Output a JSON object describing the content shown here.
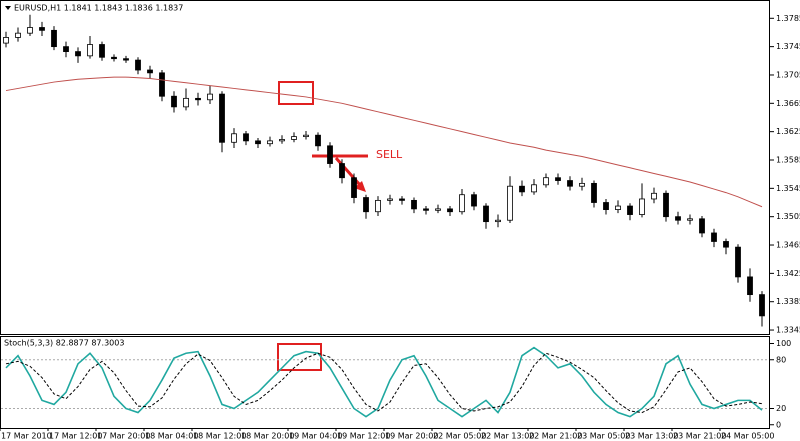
{
  "chart_data": [
    {
      "type": "candlestick",
      "title": "EURUSD,H1  1.1841 1.1843 1.1836 1.1837",
      "annotation": "SELL",
      "categories": [
        "17 Mar 2010",
        null,
        null,
        null,
        "17 Mar 12:00",
        null,
        null,
        null,
        "17 Mar 20:00",
        null,
        null,
        null,
        "18 Mar 04:00",
        null,
        null,
        null,
        "18 Mar 12:00",
        null,
        null,
        null,
        "18 Mar 20:00",
        null,
        null,
        null,
        "19 Mar 04:00",
        null,
        null,
        null,
        "19 Mar 12:00",
        null,
        null,
        null,
        "19 Mar 20:00",
        null,
        null,
        null,
        "22 Mar 05:00",
        null,
        null,
        null,
        "22 Mar 13:00",
        null,
        null,
        null,
        "22 Mar 21:00",
        null,
        null,
        null,
        "23 Mar 05:00",
        null,
        null,
        null,
        "23 Mar 13:00",
        null,
        null,
        null,
        "23 Mar 21:00",
        null,
        null,
        null,
        "24 Mar 05:00",
        null,
        null,
        null
      ],
      "open": [
        1.375,
        1.3758,
        1.3764,
        1.3772,
        1.3768,
        1.3745,
        1.3738,
        1.3732,
        1.3748,
        1.373,
        1.3728,
        1.3726,
        1.3712,
        1.3708,
        1.3675,
        1.366,
        1.3672,
        1.367,
        1.3678,
        1.361,
        1.3622,
        1.3612,
        1.3608,
        1.3612,
        1.3614,
        1.3618,
        1.362,
        1.3605,
        1.358,
        1.356,
        1.3532,
        1.3512,
        1.3528,
        1.353,
        1.3528,
        1.3516,
        1.3514,
        1.3516,
        1.3512,
        1.3536,
        1.352,
        1.3498,
        1.35,
        1.3548,
        1.354,
        1.355,
        1.356,
        1.3556,
        1.3548,
        1.3552,
        1.3525,
        1.3515,
        1.352,
        1.3508,
        1.353,
        1.3538,
        1.3505,
        1.35,
        1.3502,
        1.3482,
        1.347,
        1.3462,
        1.342,
        1.3395
      ],
      "high": [
        1.3766,
        1.3772,
        1.379,
        1.378,
        1.3774,
        1.3752,
        1.3744,
        1.376,
        1.3752,
        1.3734,
        1.3732,
        1.373,
        1.3718,
        1.3712,
        1.3682,
        1.3686,
        1.368,
        1.369,
        1.3682,
        1.363,
        1.3626,
        1.3616,
        1.3618,
        1.362,
        1.3624,
        1.3626,
        1.3624,
        1.361,
        1.3586,
        1.3566,
        1.3536,
        1.3534,
        1.3536,
        1.3534,
        1.3532,
        1.352,
        1.3522,
        1.352,
        1.3544,
        1.354,
        1.3524,
        1.3508,
        1.3562,
        1.3556,
        1.3558,
        1.3566,
        1.3566,
        1.3562,
        1.356,
        1.3556,
        1.353,
        1.3528,
        1.3524,
        1.3552,
        1.3546,
        1.3542,
        1.3512,
        1.3508,
        1.3506,
        1.3488,
        1.3474,
        1.3466,
        1.3432,
        1.34
      ],
      "low": [
        1.3744,
        1.3752,
        1.376,
        1.376,
        1.374,
        1.373,
        1.3722,
        1.3728,
        1.3725,
        1.3724,
        1.3722,
        1.3706,
        1.37,
        1.3668,
        1.3652,
        1.3655,
        1.3662,
        1.3664,
        1.3596,
        1.3602,
        1.3606,
        1.3602,
        1.3604,
        1.3608,
        1.361,
        1.3614,
        1.3598,
        1.3574,
        1.3552,
        1.3524,
        1.3502,
        1.3506,
        1.3522,
        1.3522,
        1.351,
        1.3508,
        1.351,
        1.3506,
        1.3508,
        1.3514,
        1.3488,
        1.349,
        1.3496,
        1.3534,
        1.3536,
        1.3546,
        1.355,
        1.3542,
        1.3542,
        1.3518,
        1.3508,
        1.351,
        1.35,
        1.3504,
        1.3524,
        1.3498,
        1.3494,
        1.3494,
        1.3476,
        1.3462,
        1.3452,
        1.3412,
        1.3385,
        1.335
      ],
      "close": [
        1.3758,
        1.3764,
        1.3772,
        1.3768,
        1.3745,
        1.3738,
        1.3732,
        1.3748,
        1.373,
        1.3728,
        1.3726,
        1.3712,
        1.3708,
        1.3675,
        1.366,
        1.3672,
        1.367,
        1.3678,
        1.361,
        1.3622,
        1.3612,
        1.3608,
        1.3612,
        1.3614,
        1.3618,
        1.362,
        1.3605,
        1.358,
        1.356,
        1.3532,
        1.3512,
        1.3528,
        1.353,
        1.3528,
        1.3516,
        1.3514,
        1.3516,
        1.3512,
        1.3536,
        1.352,
        1.3498,
        1.35,
        1.3548,
        1.354,
        1.355,
        1.356,
        1.3556,
        1.3548,
        1.3552,
        1.3525,
        1.3515,
        1.352,
        1.3508,
        1.353,
        1.3538,
        1.3505,
        1.35,
        1.3502,
        1.3482,
        1.347,
        1.3462,
        1.342,
        1.3395,
        1.3365
      ],
      "ma": {
        "color": "#c0504d",
        "values": [
          1.3683,
          1.3686,
          1.3689,
          1.3692,
          1.3695,
          1.3697,
          1.3699,
          1.37,
          1.3701,
          1.3702,
          1.3702,
          1.3701,
          1.37,
          1.3698,
          1.3696,
          1.3694,
          1.3692,
          1.369,
          1.3688,
          1.3686,
          1.3684,
          1.3682,
          1.368,
          1.3678,
          1.3676,
          1.3674,
          1.3671,
          1.3668,
          1.3665,
          1.3661,
          1.3657,
          1.3653,
          1.3649,
          1.3645,
          1.3641,
          1.3637,
          1.3633,
          1.3629,
          1.3625,
          1.3621,
          1.3617,
          1.3613,
          1.3609,
          1.3606,
          1.3603,
          1.3599,
          1.3596,
          1.3593,
          1.359,
          1.3586,
          1.3582,
          1.3578,
          1.3574,
          1.357,
          1.3566,
          1.3562,
          1.3558,
          1.3554,
          1.3549,
          1.3544,
          1.3539,
          1.3533,
          1.3526,
          1.3519
        ]
      },
      "ylim": [
        1.3338,
        1.3808
      ],
      "yticks": [
        1.3345,
        1.3385,
        1.3425,
        1.3465,
        1.3505,
        1.3545,
        1.3585,
        1.3625,
        1.3665,
        1.3705,
        1.3745,
        1.3785
      ]
    },
    {
      "type": "stochastic",
      "title": "Stoch(5,3,3) 82.8877 87.3003",
      "series": [
        {
          "color": "#20a8a0",
          "style": "solid",
          "values": [
            70,
            85,
            60,
            30,
            25,
            40,
            75,
            88,
            70,
            35,
            20,
            15,
            30,
            55,
            82,
            88,
            90,
            60,
            25,
            20,
            30,
            40,
            55,
            70,
            85,
            90,
            88,
            70,
            45,
            20,
            10,
            20,
            55,
            80,
            85,
            60,
            30,
            20,
            10,
            20,
            30,
            15,
            40,
            85,
            95,
            85,
            70,
            75,
            60,
            40,
            25,
            15,
            10,
            20,
            35,
            75,
            85,
            50,
            25,
            20,
            25,
            30,
            30,
            18
          ]
        },
        {
          "color": "#000000",
          "style": "dashed",
          "values": [
            75,
            78,
            72,
            58,
            38,
            32,
            47,
            68,
            78,
            64,
            42,
            23,
            22,
            33,
            56,
            75,
            87,
            79,
            58,
            35,
            25,
            30,
            42,
            55,
            70,
            82,
            88,
            83,
            68,
            45,
            25,
            17,
            28,
            52,
            73,
            75,
            58,
            37,
            20,
            17,
            20,
            22,
            28,
            47,
            73,
            88,
            83,
            77,
            68,
            58,
            42,
            27,
            17,
            15,
            22,
            43,
            65,
            70,
            53,
            32,
            23,
            25,
            28,
            26
          ]
        }
      ],
      "ylim": [
        -4,
        108
      ],
      "yticks": [
        0,
        20,
        80,
        100
      ],
      "levels": [
        20,
        80
      ]
    }
  ]
}
